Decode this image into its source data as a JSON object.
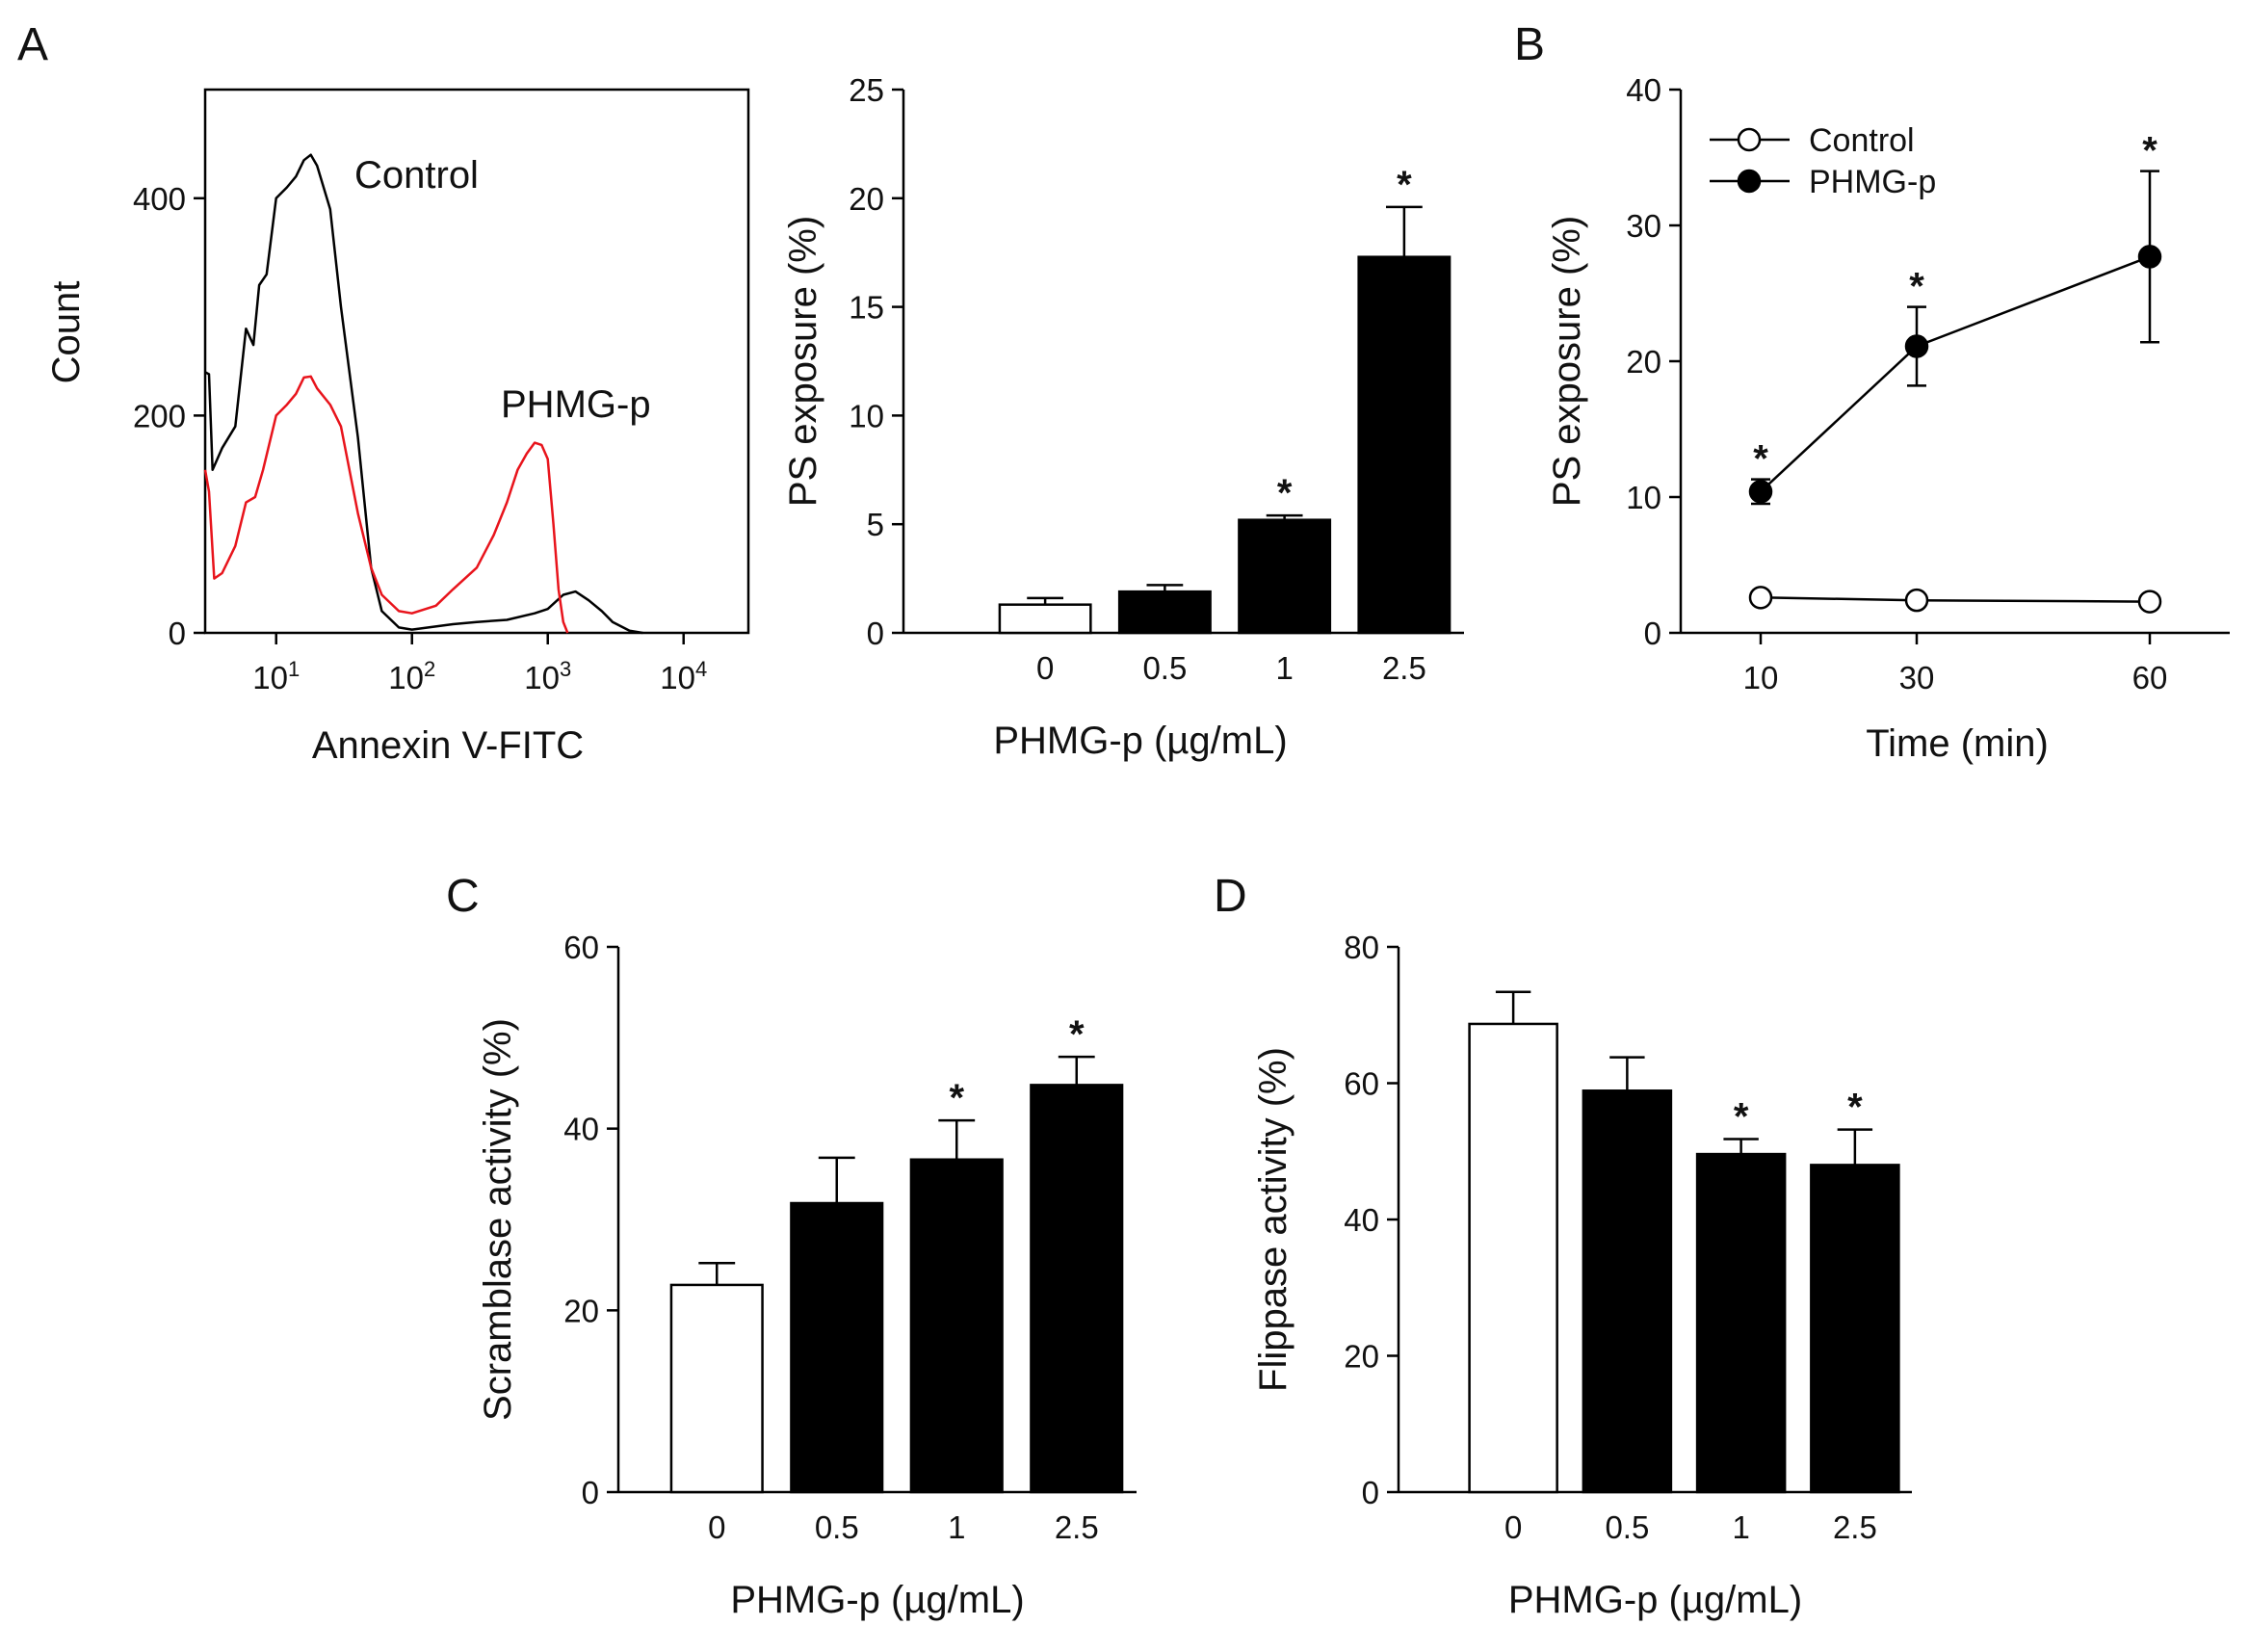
{
  "panel_letters": {
    "a": "A",
    "b": "B",
    "c": "C",
    "d": "D"
  },
  "colors": {
    "black": "#000000",
    "red": "#e8141c",
    "white": "#ffffff"
  },
  "chart_data": [
    {
      "id": "A-histogram",
      "type": "line",
      "title": "",
      "xlabel": "Annexin V-FITC",
      "ylabel": "Count",
      "xscale": "log",
      "xlim": [
        3,
        30000
      ],
      "ylim": [
        0,
        500
      ],
      "xticks": [
        {
          "value": 10,
          "base": "10",
          "exp": "1"
        },
        {
          "value": 100,
          "base": "10",
          "exp": "2"
        },
        {
          "value": 1000,
          "base": "10",
          "exp": "3"
        },
        {
          "value": 10000,
          "base": "10",
          "exp": "4"
        }
      ],
      "yticks": [
        "0",
        "200",
        "400"
      ],
      "ytick_values": [
        0,
        200,
        400
      ],
      "series": [
        {
          "name": "Control",
          "color": "#000000",
          "points": [
            [
              3,
              240
            ],
            [
              3.2,
              238
            ],
            [
              3.4,
              150
            ],
            [
              4,
              170
            ],
            [
              5,
              190
            ],
            [
              6,
              280
            ],
            [
              6.8,
              265
            ],
            [
              7.5,
              320
            ],
            [
              8.5,
              330
            ],
            [
              10,
              400
            ],
            [
              12,
              410
            ],
            [
              14,
              420
            ],
            [
              16,
              435
            ],
            [
              18,
              440
            ],
            [
              20,
              430
            ],
            [
              25,
              390
            ],
            [
              30,
              300
            ],
            [
              40,
              180
            ],
            [
              50,
              60
            ],
            [
              60,
              20
            ],
            [
              80,
              5
            ],
            [
              100,
              3
            ],
            [
              200,
              8
            ],
            [
              300,
              10
            ],
            [
              500,
              12
            ],
            [
              800,
              18
            ],
            [
              1000,
              22
            ],
            [
              1300,
              35
            ],
            [
              1600,
              38
            ],
            [
              2000,
              30
            ],
            [
              2500,
              20
            ],
            [
              3000,
              10
            ],
            [
              4000,
              2
            ],
            [
              5000,
              0
            ]
          ]
        },
        {
          "name": "PHMG-p",
          "color": "#e8141c",
          "points": [
            [
              3,
              150
            ],
            [
              3.2,
              130
            ],
            [
              3.5,
              50
            ],
            [
              4,
              55
            ],
            [
              5,
              80
            ],
            [
              6,
              120
            ],
            [
              7,
              125
            ],
            [
              8,
              150
            ],
            [
              10,
              200
            ],
            [
              12,
              210
            ],
            [
              14,
              220
            ],
            [
              16,
              235
            ],
            [
              18,
              236
            ],
            [
              20,
              225
            ],
            [
              25,
              210
            ],
            [
              30,
              190
            ],
            [
              40,
              110
            ],
            [
              50,
              60
            ],
            [
              60,
              35
            ],
            [
              80,
              20
            ],
            [
              100,
              18
            ],
            [
              150,
              25
            ],
            [
              200,
              40
            ],
            [
              300,
              60
            ],
            [
              400,
              90
            ],
            [
              500,
              120
            ],
            [
              600,
              150
            ],
            [
              700,
              165
            ],
            [
              800,
              175
            ],
            [
              900,
              173
            ],
            [
              1000,
              160
            ],
            [
              1100,
              100
            ],
            [
              1200,
              40
            ],
            [
              1300,
              10
            ],
            [
              1400,
              0
            ]
          ]
        }
      ],
      "annotations": [
        {
          "text": "Control",
          "color": "#000000"
        },
        {
          "text": "PHMG-p",
          "color": "#e8141c"
        }
      ]
    },
    {
      "id": "A-bar",
      "type": "bar",
      "title": "",
      "xlabel": "PHMG-p (µg/mL)",
      "ylabel": "PS exposure (%)",
      "ylim": [
        0,
        25
      ],
      "yticks": [
        "0",
        "5",
        "10",
        "15",
        "20",
        "25"
      ],
      "ytick_values": [
        0,
        5,
        10,
        15,
        20,
        25
      ],
      "categories": [
        "0",
        "0.5",
        "1",
        "2.5"
      ],
      "values": [
        1.3,
        1.9,
        5.2,
        17.3
      ],
      "errors": [
        0.3,
        0.3,
        0.2,
        2.3
      ],
      "fills": [
        "#ffffff",
        "#000000",
        "#000000",
        "#000000"
      ],
      "significance": [
        "",
        "",
        "*",
        "*"
      ]
    },
    {
      "id": "B-line",
      "type": "line",
      "title": "",
      "xlabel": "Time (min)",
      "ylabel": "PS exposure (%)",
      "ylim": [
        0,
        40
      ],
      "yticks": [
        "0",
        "10",
        "20",
        "30",
        "40"
      ],
      "ytick_values": [
        0,
        10,
        20,
        30,
        40
      ],
      "x": [
        10,
        30,
        60
      ],
      "xticks": [
        "10",
        "30",
        "60"
      ],
      "series": [
        {
          "name": "Control",
          "marker": "open-circle",
          "values": [
            2.6,
            2.4,
            2.3
          ],
          "errors": [
            0.3,
            0.3,
            0.3
          ],
          "significance": [
            "",
            "",
            ""
          ]
        },
        {
          "name": "PHMG-p",
          "marker": "filled-circle",
          "values": [
            10.4,
            21.1,
            27.7
          ],
          "errors": [
            0.9,
            2.9,
            6.3
          ],
          "significance": [
            "*",
            "*",
            "*"
          ]
        }
      ],
      "legend": [
        "Control",
        "PHMG-p"
      ],
      "legend_position": "top-left"
    },
    {
      "id": "C-bar",
      "type": "bar",
      "title": "",
      "xlabel": "PHMG-p (µg/mL)",
      "ylabel": "Scramblase activity (%)",
      "ylim": [
        0,
        60
      ],
      "yticks": [
        "0",
        "20",
        "40",
        "60"
      ],
      "ytick_values": [
        0,
        20,
        40,
        60
      ],
      "categories": [
        "0",
        "0.5",
        "1",
        "2.5"
      ],
      "values": [
        22.8,
        31.8,
        36.6,
        44.8
      ],
      "errors": [
        2.4,
        5.0,
        4.3,
        3.1
      ],
      "fills": [
        "#ffffff",
        "#000000",
        "#000000",
        "#000000"
      ],
      "significance": [
        "",
        "",
        "*",
        "*"
      ]
    },
    {
      "id": "D-bar",
      "type": "bar",
      "title": "",
      "xlabel": "PHMG-p (µg/mL)",
      "ylabel": "Flippase activity (%)",
      "ylim": [
        0,
        80
      ],
      "yticks": [
        "0",
        "20",
        "40",
        "60",
        "80"
      ],
      "ytick_values": [
        0,
        20,
        40,
        60,
        80
      ],
      "categories": [
        "0",
        "0.5",
        "1",
        "2.5"
      ],
      "values": [
        68.7,
        58.9,
        49.6,
        48.0
      ],
      "errors": [
        4.7,
        4.9,
        2.2,
        5.2
      ],
      "fills": [
        "#ffffff",
        "#000000",
        "#000000",
        "#000000"
      ],
      "significance": [
        "",
        "",
        "*",
        "*"
      ]
    }
  ]
}
